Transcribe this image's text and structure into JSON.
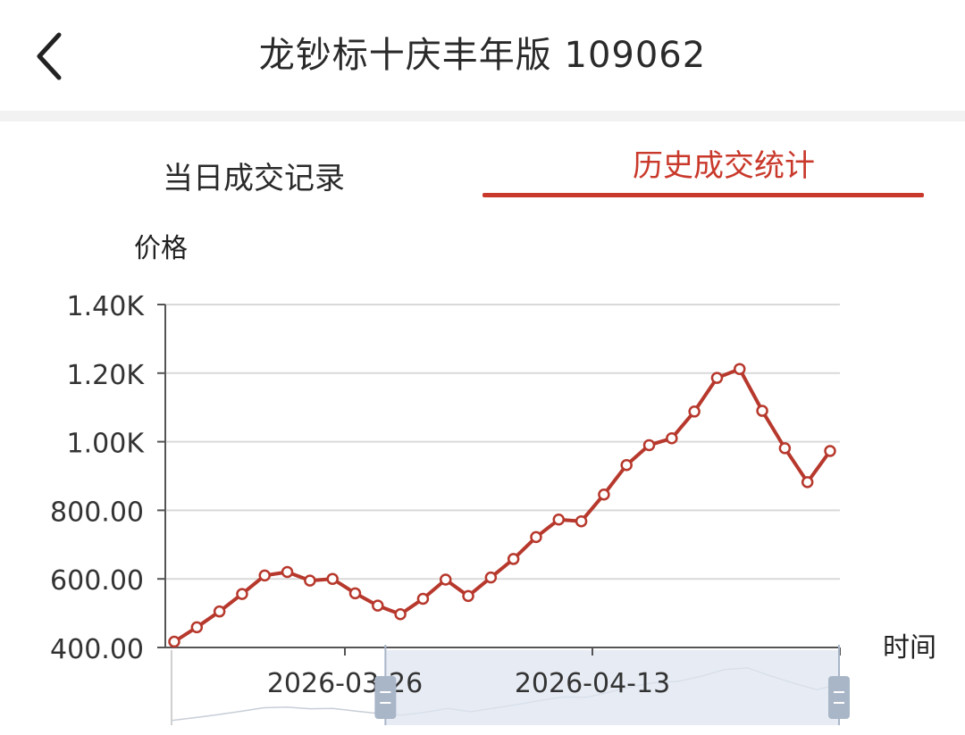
{
  "header": {
    "title": "龙钞标十庆丰年版 109062",
    "back_icon": "chevron-left-icon"
  },
  "tabs": [
    {
      "label": "当日成交记录",
      "active": false
    },
    {
      "label": "历史成交统计",
      "active": true
    }
  ],
  "colors": {
    "accent": "#c9392b",
    "line": "#b7382c",
    "grid": "#d9d9d9",
    "zoom_fill": "#dfe6f0",
    "zoom_handle": "#a9b6c8"
  },
  "chart_data": {
    "type": "line",
    "ylabel": "价格",
    "xlabel": "时间",
    "ylim": [
      400,
      1400
    ],
    "y_ticks": [
      "400.00",
      "600.00",
      "800.00",
      "1.00K",
      "1.20K",
      "1.40K"
    ],
    "x_tick_labels": [
      "2026-03-26",
      "2026-04-13"
    ],
    "grid": true,
    "legend": "none",
    "series": [
      {
        "values": [
          417,
          459,
          505,
          556,
          610,
          620,
          595,
          600,
          558,
          522,
          497,
          542,
          598,
          550,
          604,
          658,
          722,
          773,
          768,
          846,
          932,
          990,
          1010,
          1088,
          1186,
          1212,
          1090,
          981,
          882,
          973
        ]
      }
    ],
    "zoom_slider": {
      "start_fraction": 0.32,
      "end_fraction": 1.0
    }
  }
}
